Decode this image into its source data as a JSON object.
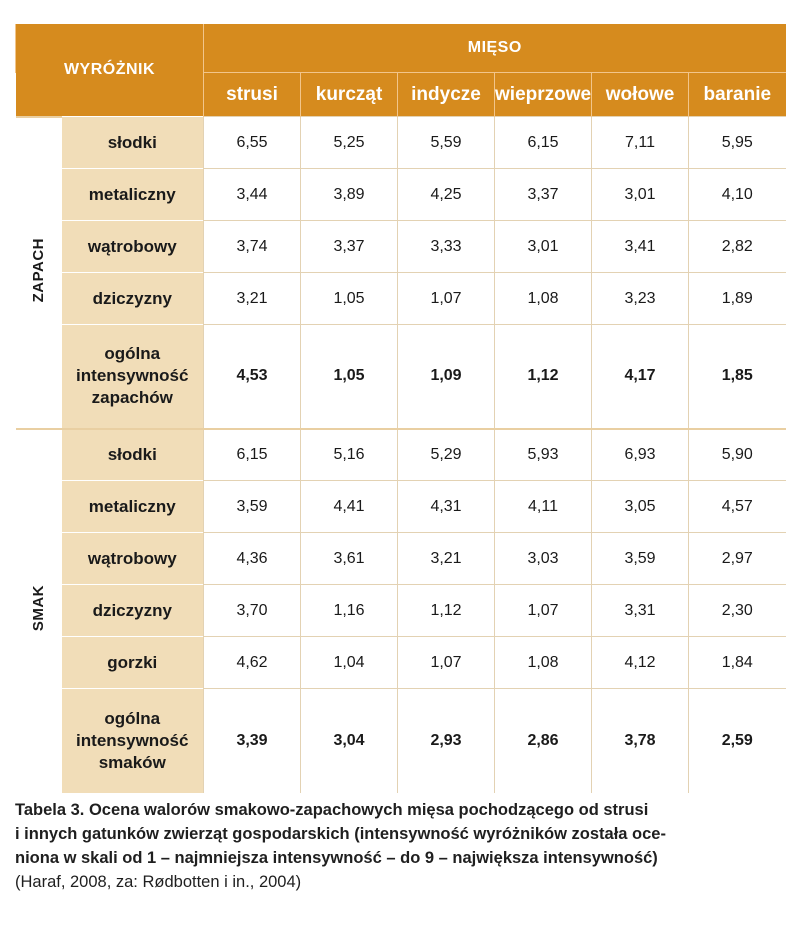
{
  "header": {
    "title": "WYRÓŻNIK",
    "group": "MIĘSO",
    "columns": [
      "strusi",
      "kurcząt",
      "indycze",
      "wieprzowe",
      "wołowe",
      "baranie"
    ]
  },
  "sections": [
    {
      "category": "ZAPACH",
      "rows": [
        {
          "label": "słodki",
          "values": [
            "6,55",
            "5,25",
            "5,59",
            "6,15",
            "7,11",
            "5,95"
          ]
        },
        {
          "label": "metaliczny",
          "values": [
            "3,44",
            "3,89",
            "4,25",
            "3,37",
            "3,01",
            "4,10"
          ]
        },
        {
          "label": "wątrobowy",
          "values": [
            "3,74",
            "3,37",
            "3,33",
            "3,01",
            "3,41",
            "2,82"
          ]
        },
        {
          "label": "dziczyzny",
          "values": [
            "3,21",
            "1,05",
            "1,07",
            "1,08",
            "3,23",
            "1,89"
          ]
        },
        {
          "label_lines": [
            "ogólna",
            "intensywność",
            "zapachów"
          ],
          "values": [
            "4,53",
            "1,05",
            "1,09",
            "1,12",
            "4,17",
            "1,85"
          ]
        }
      ]
    },
    {
      "category": "SMAK",
      "rows": [
        {
          "label": "słodki",
          "values": [
            "6,15",
            "5,16",
            "5,29",
            "5,93",
            "6,93",
            "5,90"
          ]
        },
        {
          "label": "metaliczny",
          "values": [
            "3,59",
            "4,41",
            "4,31",
            "4,11",
            "3,05",
            "4,57"
          ]
        },
        {
          "label": "wątrobowy",
          "values": [
            "4,36",
            "3,61",
            "3,21",
            "3,03",
            "3,59",
            "2,97"
          ]
        },
        {
          "label": "dziczyzny",
          "values": [
            "3,70",
            "1,16",
            "1,12",
            "1,07",
            "3,31",
            "2,30"
          ]
        },
        {
          "label": "gorzki",
          "values": [
            "4,62",
            "1,04",
            "1,07",
            "1,08",
            "4,12",
            "1,84"
          ]
        },
        {
          "label_lines": [
            "ogólna",
            "intensywność",
            "smaków"
          ],
          "values": [
            "3,39",
            "3,04",
            "2,93",
            "2,86",
            "3,78",
            "2,59"
          ]
        }
      ]
    }
  ],
  "caption": {
    "lines": [
      "Tabela 3. Ocena walorów smakowo-zapachowych mięsa pochodzącego od strusi",
      "i innych gatunków zwierząt gospodarskich (intensywność wyróżników została oce-",
      "niona w skali od 1 – najmniejsza intensywność – do 9 – największa intensywność)"
    ],
    "source": "(Haraf, 2008, za: Rødbotten i in., 2004)"
  },
  "colors": {
    "header_orange": "#d68b1e",
    "label_beige": "#f1ddb8"
  }
}
